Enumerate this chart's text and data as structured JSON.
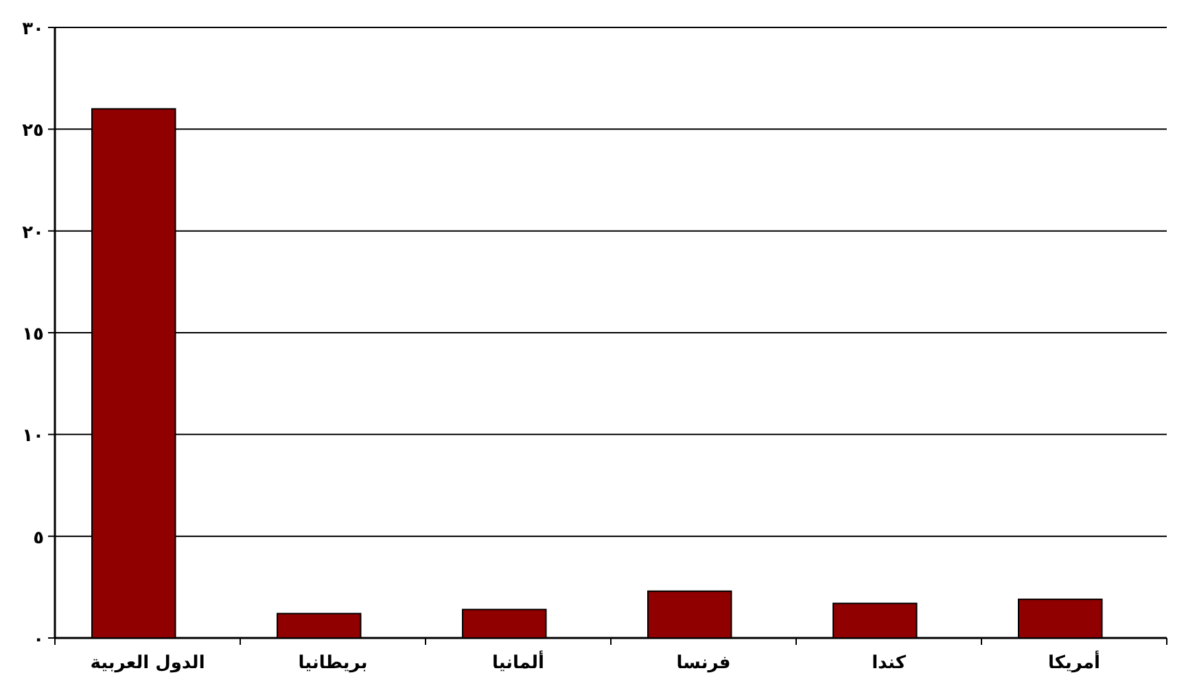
{
  "chart_data": {
    "type": "bar",
    "categories": [
      "الدول العربية",
      "بريطانيا",
      "ألمانيا",
      "فرنسا",
      "كندا",
      "أمريكا"
    ],
    "values": [
      26,
      1.2,
      1.4,
      2.3,
      1.7,
      1.9
    ],
    "color": "#900000",
    "ylim": [
      0,
      30
    ],
    "yticks": [
      {
        "value": 0,
        "label": "٠"
      },
      {
        "value": 5,
        "label": "٥"
      },
      {
        "value": 10,
        "label": "١٠"
      },
      {
        "value": 15,
        "label": "١٥"
      },
      {
        "value": 20,
        "label": "٢٠"
      },
      {
        "value": 25,
        "label": "٢٥"
      },
      {
        "value": 30,
        "label": "٣٠"
      }
    ],
    "grid": "y"
  }
}
